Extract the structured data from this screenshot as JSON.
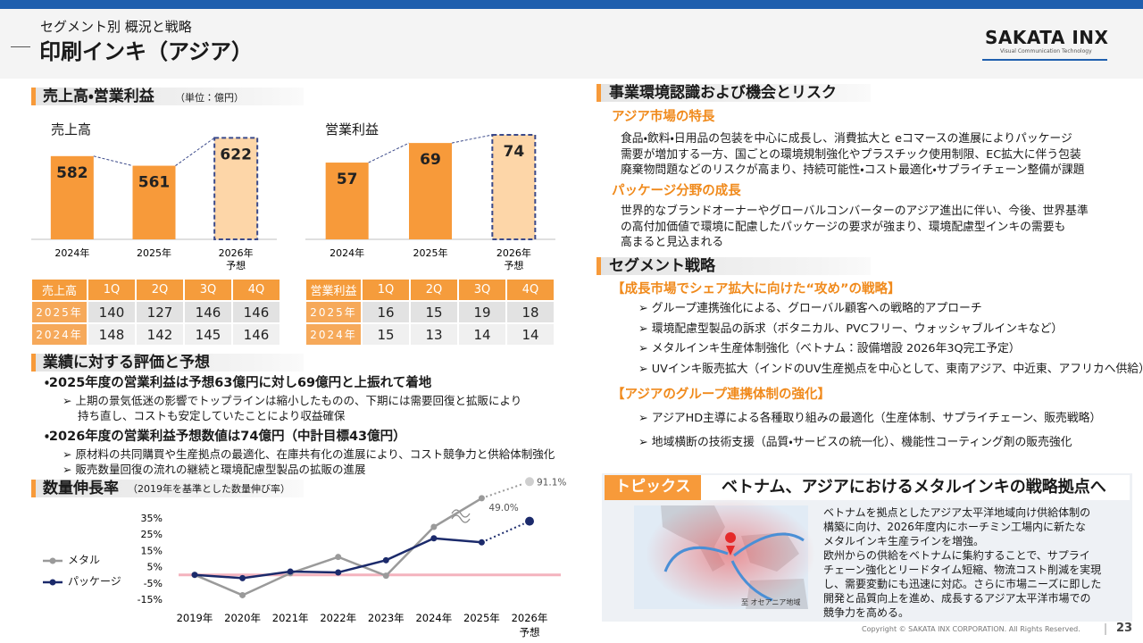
{
  "header": {
    "subtitle": "セグメント別 概況と戦略",
    "title": "印刷インキ（アジア）",
    "logo": "SAKATA INX",
    "logo_tagline": "Visual Communication Technology"
  },
  "left": {
    "sales_section": {
      "title": "売上高・営業利益",
      "unit": "（単位：億円）"
    },
    "sales_table": {
      "header": [
        "売上高",
        "1Q",
        "2Q",
        "3Q",
        "4Q"
      ],
      "rows": [
        [
          "2025年",
          140,
          127,
          146,
          146
        ],
        [
          "2024年",
          148,
          142,
          145,
          146
        ]
      ]
    },
    "profit_table": {
      "header": [
        "営業利益",
        "1Q",
        "2Q",
        "3Q",
        "4Q"
      ],
      "rows": [
        [
          "2025年",
          16,
          15,
          19,
          18
        ],
        [
          "2024年",
          15,
          13,
          14,
          14
        ]
      ]
    },
    "evaluation": {
      "title": "業績に対する評価と予想",
      "items": [
        {
          "text": "・2025年度の営業利益は予想63億円に対し69億円と上振れて着地",
          "notes": [
            "➢ 上期の景気低迷の影響でトップラインは縮小したものの、下期には需要回復と拡販により",
            "持ち直し、コストも安定していたことにより収益確保"
          ]
        },
        {
          "text": "・2026年度の営業利益予想数値は74億円（中計目標43億円）",
          "notes": [
            "➢ 原材料の共同購買や生産拠点の最適化、在庫共有化の進展により、コスト競争力と供給体制強化",
            "➢ 販売数量回復の流れの継続と環境配慮型製品の拡販の進展"
          ]
        }
      ]
    },
    "volume": {
      "title": "数量伸長率",
      "note": "（2019年を基準とした数量伸び率）"
    }
  },
  "right": {
    "environment": {
      "title": "事業環境認識および機会とリスク",
      "market": {
        "title": "アジア市場の特長",
        "lines": [
          "食品・飲料・日用品の包装を中心に成長し、消費拡大と eコマースの進展によりパッケージ",
          "需要が増加する一方、国ごとの環境規制強化やプラスチック使用制限、EC拡大に伴う包装",
          "廃棄物問題などのリスクが高まり、持続可能性・コスト最適化・サプライチェーン整備が課題"
        ]
      },
      "package": {
        "title": "パッケージ分野の成長",
        "lines": [
          "世界的なブランドオーナーやグローバルコンバーターのアジア進出に伴い、今後、世界基準",
          "の高付加価値で環境に配慮したパッケージの要求が強まり、環境配慮型インキの需要も",
          "高まると見込まれる"
        ]
      }
    },
    "strategy": {
      "title": "セグメント戦略",
      "groups": [
        {
          "title": "【成長市場でシェア拡大に向けた“攻め”の戦略】",
          "bullets": [
            "➢ グループ連携強化による、グローバル顧客への戦略的アプローチ",
            "➢ 環境配慮型製品の訴求（ボタニカル、PVCフリー、ウォッシャブルインキなど）",
            "➢ メタルインキ生産体制強化（ベトナム：設備増設 2026年3Q完工予定）",
            "➢ UVインキ販売拡大（インドのUV生産拠点を中心として、東南アジア、中近東、アフリカへ供給）"
          ]
        },
        {
          "title": "【アジアのグループ連携体制の強化】",
          "bullets": [
            "➢ アジアHD主導による各種取り組みの最適化（生産体制、サプライチェーン、販売戦略）",
            "➢ 地域横断の技術支援（品質・サービスの統一化）、機能性コーティング剤の販売強化"
          ]
        }
      ]
    }
  },
  "topics": {
    "label": "トピックス",
    "title": "ベトナム、アジアにおけるメタルインキの戦略拠点へ",
    "map_caption": "至 オセアニア地域",
    "lines": [
      "ベトナムを拠点としたアジア太平洋地域向け供給体制の",
      "構築に向け、2026年度内にホーチミン工場内に新たな",
      "メタルインキ生産ラインを増強。",
      "欧州からの供給をベトナムに集約することで、サプライ",
      "チェーン強化とリードタイム短縮、物流コスト削減を実現",
      "し、需要変動にも迅速に対応。さらに市場ニーズに即した",
      "開発と品質向上を進め、成長するアジア太平洋市場での",
      "競争力を高める。"
    ]
  },
  "footer": {
    "copyright": "Copyright © SAKATA INX CORPORATION. All Rights Reserved.",
    "page": "23"
  },
  "chart_data": [
    {
      "type": "bar",
      "title": "売上高",
      "categories": [
        "2024年",
        "2025年",
        "2026年"
      ],
      "forecast_label": "予想",
      "values": [
        582,
        561,
        622
      ],
      "color": "#f79a3a",
      "forecast_color": "#fdd6a8",
      "ylim": [
        400,
        650
      ]
    },
    {
      "type": "bar",
      "title": "営業利益",
      "categories": [
        "2024年",
        "2025年",
        "2026年"
      ],
      "forecast_label": "予想",
      "values": [
        57,
        69,
        74
      ],
      "color": "#f79a3a",
      "forecast_color": "#fdd6a8",
      "ylim": [
        10,
        80
      ]
    },
    {
      "type": "line",
      "categories": [
        "2019年",
        "2020年",
        "2021年",
        "2022年",
        "2023年",
        "2024年",
        "2025年",
        "2026年"
      ],
      "forecast_label": "予想",
      "ylim": [
        -15,
        35
      ],
      "yticks": [
        {
          "value": 35,
          "label": "35%"
        },
        {
          "value": 25,
          "label": "25%"
        },
        {
          "value": 15,
          "label": "15%"
        },
        {
          "value": 5,
          "label": "5%"
        },
        {
          "value": -5,
          "label": "-5%"
        },
        {
          "value": -15,
          "label": "-15%"
        }
      ],
      "series": [
        {
          "name": "メタル",
          "color": "#9a9a9a",
          "values": [
            0,
            -12.5,
            1,
            11,
            -0.5,
            29.5,
            49.0,
            91.1
          ],
          "value_labels": [
            null,
            null,
            null,
            null,
            null,
            null,
            "49.0%",
            "91.1%"
          ]
        },
        {
          "name": "パッケージ",
          "color": "#1b2a6b",
          "values": [
            0,
            -2,
            2,
            1.5,
            9,
            22.5,
            20,
            33
          ]
        }
      ]
    }
  ]
}
